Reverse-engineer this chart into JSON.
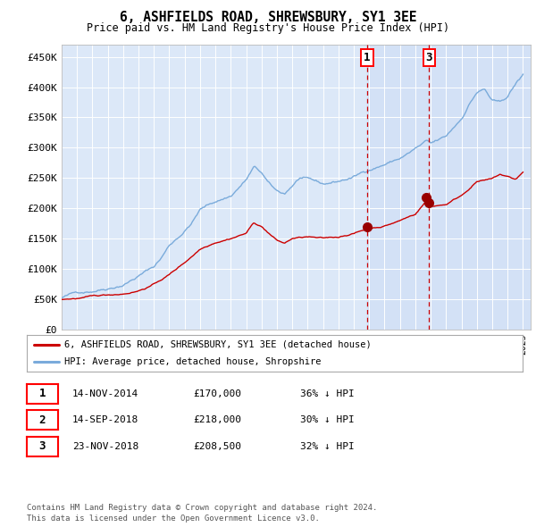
{
  "title": "6, ASHFIELDS ROAD, SHREWSBURY, SY1 3EE",
  "subtitle": "Price paid vs. HM Land Registry's House Price Index (HPI)",
  "background_color": "#ffffff",
  "plot_bg_color": "#dce8f8",
  "grid_color": "#ffffff",
  "hpi_color": "#7aabdb",
  "price_color": "#cc0000",
  "sale_marker_color": "#990000",
  "annotation_line_color": "#cc0000",
  "shading_color": "#ccddf5",
  "ylim": [
    0,
    470000
  ],
  "yticks": [
    0,
    50000,
    100000,
    150000,
    200000,
    250000,
    300000,
    350000,
    400000,
    450000
  ],
  "ytick_labels": [
    "£0",
    "£50K",
    "£100K",
    "£150K",
    "£200K",
    "£250K",
    "£300K",
    "£350K",
    "£400K",
    "£450K"
  ],
  "xlim_left": 1995.0,
  "xlim_right": 2025.5,
  "sale1_date": 2014.87,
  "sale1_price": 170000,
  "sale2_date": 2018.71,
  "sale2_price": 218000,
  "sale3_date": 2018.9,
  "sale3_price": 208500,
  "legend_label_red": "6, ASHFIELDS ROAD, SHREWSBURY, SY1 3EE (detached house)",
  "legend_label_blue": "HPI: Average price, detached house, Shropshire",
  "table_data": [
    [
      "1",
      "14-NOV-2014",
      "£170,000",
      "36% ↓ HPI"
    ],
    [
      "2",
      "14-SEP-2018",
      "£218,000",
      "30% ↓ HPI"
    ],
    [
      "3",
      "23-NOV-2018",
      "£208,500",
      "32% ↓ HPI"
    ]
  ],
  "footer": "Contains HM Land Registry data © Crown copyright and database right 2024.\nThis data is licensed under the Open Government Licence v3.0.",
  "hpi_anchors": [
    [
      1995.0,
      52000
    ],
    [
      1996.0,
      60000
    ],
    [
      1997.0,
      65000
    ],
    [
      1998.0,
      72000
    ],
    [
      1999.0,
      80000
    ],
    [
      2000.0,
      95000
    ],
    [
      2001.0,
      110000
    ],
    [
      2001.5,
      125000
    ],
    [
      2002.0,
      145000
    ],
    [
      2003.0,
      170000
    ],
    [
      2003.5,
      185000
    ],
    [
      2004.0,
      205000
    ],
    [
      2005.0,
      218000
    ],
    [
      2006.0,
      228000
    ],
    [
      2007.0,
      255000
    ],
    [
      2007.5,
      275000
    ],
    [
      2008.0,
      265000
    ],
    [
      2008.5,
      245000
    ],
    [
      2009.0,
      232000
    ],
    [
      2009.5,
      228000
    ],
    [
      2010.0,
      242000
    ],
    [
      2010.5,
      255000
    ],
    [
      2011.0,
      250000
    ],
    [
      2012.0,
      240000
    ],
    [
      2013.0,
      245000
    ],
    [
      2014.0,
      252000
    ],
    [
      2014.87,
      263000
    ],
    [
      2015.0,
      265000
    ],
    [
      2016.0,
      275000
    ],
    [
      2017.0,
      285000
    ],
    [
      2017.5,
      292000
    ],
    [
      2018.0,
      300000
    ],
    [
      2018.71,
      310000
    ],
    [
      2018.9,
      308000
    ],
    [
      2019.0,
      305000
    ],
    [
      2019.5,
      310000
    ],
    [
      2020.0,
      315000
    ],
    [
      2021.0,
      345000
    ],
    [
      2021.5,
      370000
    ],
    [
      2022.0,
      390000
    ],
    [
      2022.5,
      395000
    ],
    [
      2023.0,
      375000
    ],
    [
      2023.5,
      370000
    ],
    [
      2024.0,
      380000
    ],
    [
      2024.5,
      400000
    ],
    [
      2025.0,
      415000
    ]
  ],
  "price_anchors": [
    [
      1995.0,
      50000
    ],
    [
      1996.0,
      52000
    ],
    [
      1997.0,
      54000
    ],
    [
      1998.0,
      56000
    ],
    [
      1999.0,
      59000
    ],
    [
      2000.0,
      65000
    ],
    [
      2001.0,
      76000
    ],
    [
      2002.0,
      92000
    ],
    [
      2003.0,
      112000
    ],
    [
      2004.0,
      135000
    ],
    [
      2005.0,
      148000
    ],
    [
      2006.0,
      156000
    ],
    [
      2007.0,
      165000
    ],
    [
      2007.5,
      182000
    ],
    [
      2008.0,
      176000
    ],
    [
      2009.0,
      153000
    ],
    [
      2009.5,
      148000
    ],
    [
      2010.0,
      156000
    ],
    [
      2011.0,
      158000
    ],
    [
      2012.0,
      154000
    ],
    [
      2013.0,
      156000
    ],
    [
      2013.5,
      160000
    ],
    [
      2014.0,
      163000
    ],
    [
      2014.87,
      170000
    ],
    [
      2015.0,
      171000
    ],
    [
      2016.0,
      176000
    ],
    [
      2017.0,
      185000
    ],
    [
      2018.0,
      196000
    ],
    [
      2018.71,
      218000
    ],
    [
      2018.9,
      208500
    ],
    [
      2019.0,
      209000
    ],
    [
      2020.0,
      213000
    ],
    [
      2021.0,
      228000
    ],
    [
      2022.0,
      252000
    ],
    [
      2023.0,
      255000
    ],
    [
      2023.5,
      262000
    ],
    [
      2024.0,
      258000
    ],
    [
      2024.5,
      253000
    ],
    [
      2025.0,
      265000
    ]
  ]
}
